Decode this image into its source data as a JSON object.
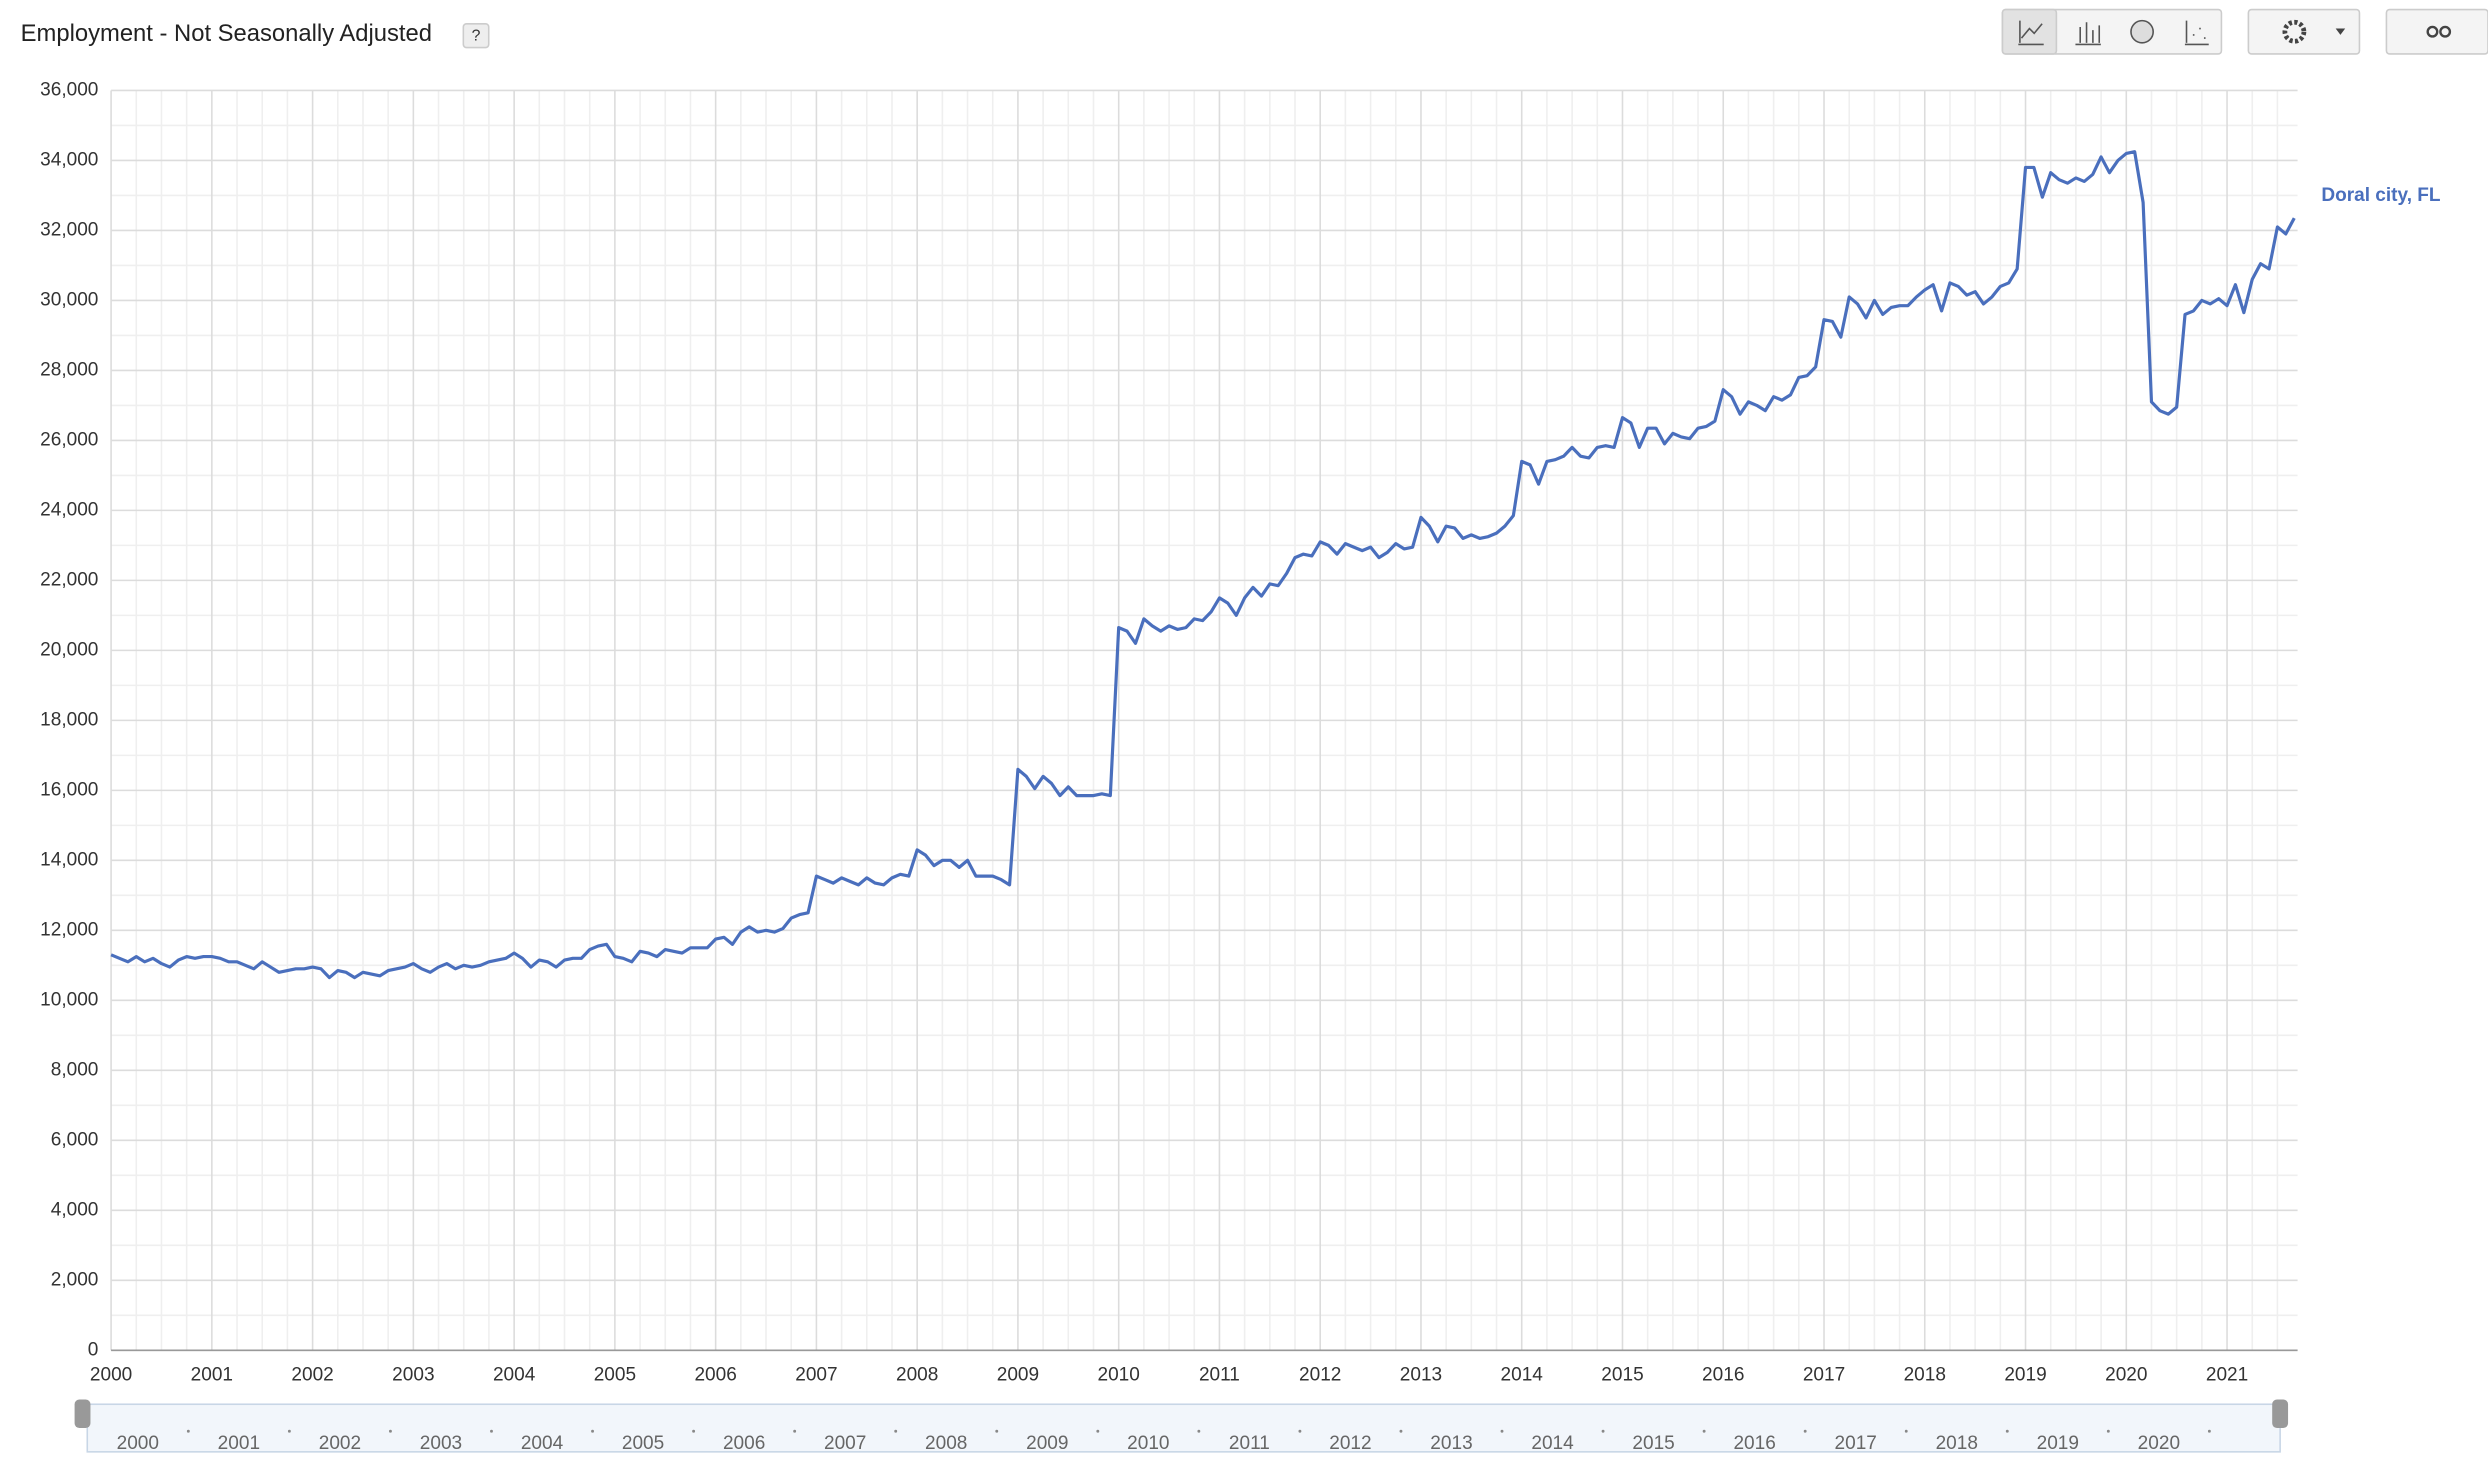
{
  "chart_data": {
    "type": "line",
    "title": "Employment - Not Seasonally Adjusted",
    "help": "?",
    "grid": true,
    "xlim": [
      2000,
      2021.7
    ],
    "xticks": [
      2000,
      2001,
      2002,
      2003,
      2004,
      2005,
      2006,
      2007,
      2008,
      2009,
      2010,
      2011,
      2012,
      2013,
      2014,
      2015,
      2016,
      2017,
      2018,
      2019,
      2020,
      2021
    ],
    "ylim": [
      0,
      36000
    ],
    "yticks": [
      0,
      {
        "value": 2000,
        "label": "2,000"
      },
      {
        "value": 4000,
        "label": "4,000"
      },
      {
        "value": 6000,
        "label": "6,000"
      },
      {
        "value": 8000,
        "label": "8,000"
      },
      {
        "value": 10000,
        "label": "10,000"
      },
      {
        "value": 12000,
        "label": "12,000"
      },
      {
        "value": 14000,
        "label": "14,000"
      },
      {
        "value": 16000,
        "label": "16,000"
      },
      {
        "value": 18000,
        "label": "18,000"
      },
      {
        "value": 20000,
        "label": "20,000"
      },
      {
        "value": 22000,
        "label": "22,000"
      },
      {
        "value": 24000,
        "label": "24,000"
      },
      {
        "value": 26000,
        "label": "26,000"
      },
      {
        "value": 28000,
        "label": "28,000"
      },
      {
        "value": 30000,
        "label": "30,000"
      },
      {
        "value": 32000,
        "label": "32,000"
      },
      {
        "value": 34000,
        "label": "34,000"
      },
      {
        "value": 36000,
        "label": "36,000"
      }
    ],
    "navigator_labels": [
      2000,
      2001,
      2002,
      2003,
      2004,
      2005,
      2006,
      2007,
      2008,
      2009,
      2010,
      2011,
      2012,
      2013,
      2014,
      2015,
      2016,
      2017,
      2018,
      2019,
      2020
    ],
    "x": [
      2000,
      2000.083,
      2000.167,
      2000.25,
      2000.333,
      2000.417,
      2000.5,
      2000.583,
      2000.667,
      2000.75,
      2000.833,
      2000.917,
      2001,
      2001.083,
      2001.167,
      2001.25,
      2001.333,
      2001.417,
      2001.5,
      2001.583,
      2001.667,
      2001.75,
      2001.833,
      2001.917,
      2002,
      2002.083,
      2002.167,
      2002.25,
      2002.333,
      2002.417,
      2002.5,
      2002.583,
      2002.667,
      2002.75,
      2002.833,
      2002.917,
      2003,
      2003.083,
      2003.167,
      2003.25,
      2003.333,
      2003.417,
      2003.5,
      2003.583,
      2003.667,
      2003.75,
      2003.833,
      2003.917,
      2004,
      2004.083,
      2004.167,
      2004.25,
      2004.333,
      2004.417,
      2004.5,
      2004.583,
      2004.667,
      2004.75,
      2004.833,
      2004.917,
      2005,
      2005.083,
      2005.167,
      2005.25,
      2005.333,
      2005.417,
      2005.5,
      2005.583,
      2005.667,
      2005.75,
      2005.833,
      2005.917,
      2006,
      2006.083,
      2006.167,
      2006.25,
      2006.333,
      2006.417,
      2006.5,
      2006.583,
      2006.667,
      2006.75,
      2006.833,
      2006.917,
      2007,
      2007.083,
      2007.167,
      2007.25,
      2007.333,
      2007.417,
      2007.5,
      2007.583,
      2007.667,
      2007.75,
      2007.833,
      2007.917,
      2008,
      2008.083,
      2008.167,
      2008.25,
      2008.333,
      2008.417,
      2008.5,
      2008.583,
      2008.667,
      2008.75,
      2008.833,
      2008.917,
      2009,
      2009.083,
      2009.167,
      2009.25,
      2009.333,
      2009.417,
      2009.5,
      2009.583,
      2009.667,
      2009.75,
      2009.833,
      2009.917,
      2010,
      2010.083,
      2010.167,
      2010.25,
      2010.333,
      2010.417,
      2010.5,
      2010.583,
      2010.667,
      2010.75,
      2010.833,
      2010.917,
      2011,
      2011.083,
      2011.167,
      2011.25,
      2011.333,
      2011.417,
      2011.5,
      2011.583,
      2011.667,
      2011.75,
      2011.833,
      2011.917,
      2012,
      2012.083,
      2012.167,
      2012.25,
      2012.333,
      2012.417,
      2012.5,
      2012.583,
      2012.667,
      2012.75,
      2012.833,
      2012.917,
      2013,
      2013.083,
      2013.167,
      2013.25,
      2013.333,
      2013.417,
      2013.5,
      2013.583,
      2013.667,
      2013.75,
      2013.833,
      2013.917,
      2014,
      2014.083,
      2014.167,
      2014.25,
      2014.333,
      2014.417,
      2014.5,
      2014.583,
      2014.667,
      2014.75,
      2014.833,
      2014.917,
      2015,
      2015.083,
      2015.167,
      2015.25,
      2015.333,
      2015.417,
      2015.5,
      2015.583,
      2015.667,
      2015.75,
      2015.833,
      2015.917,
      2016,
      2016.083,
      2016.167,
      2016.25,
      2016.333,
      2016.417,
      2016.5,
      2016.583,
      2016.667,
      2016.75,
      2016.833,
      2016.917,
      2017,
      2017.083,
      2017.167,
      2017.25,
      2017.333,
      2017.417,
      2017.5,
      2017.583,
      2017.667,
      2017.75,
      2017.833,
      2017.917,
      2018,
      2018.083,
      2018.167,
      2018.25,
      2018.333,
      2018.417,
      2018.5,
      2018.583,
      2018.667,
      2018.75,
      2018.833,
      2018.917,
      2019,
      2019.083,
      2019.167,
      2019.25,
      2019.333,
      2019.417,
      2019.5,
      2019.583,
      2019.667,
      2019.75,
      2019.833,
      2019.917,
      2020,
      2020.083,
      2020.167,
      2020.25,
      2020.333,
      2020.417,
      2020.5,
      2020.583,
      2020.667,
      2020.75,
      2020.833,
      2020.917,
      2021,
      2021.083,
      2021.167,
      2021.25,
      2021.333,
      2021.417,
      2021.5,
      2021.583,
      2021.667
    ],
    "series": [
      {
        "name": "Doral city, FL",
        "color": "#4a6fbd",
        "values": [
          11300,
          11200,
          11100,
          11250,
          11100,
          11200,
          11050,
          10950,
          11150,
          11250,
          11200,
          11250,
          11250,
          11200,
          11100,
          11100,
          11000,
          10900,
          11100,
          10950,
          10800,
          10850,
          10900,
          10900,
          10950,
          10900,
          10650,
          10850,
          10800,
          10650,
          10800,
          10750,
          10700,
          10850,
          10900,
          10950,
          11050,
          10900,
          10800,
          10950,
          11050,
          10900,
          11000,
          10950,
          11000,
          11100,
          11150,
          11200,
          11350,
          11200,
          10950,
          11150,
          11100,
          10950,
          11150,
          11200,
          11200,
          11450,
          11550,
          11600,
          11250,
          11200,
          11100,
          11400,
          11350,
          11250,
          11450,
          11400,
          11350,
          11500,
          11500,
          11500,
          11750,
          11800,
          11600,
          11950,
          12100,
          11950,
          12000,
          11950,
          12050,
          12350,
          12450,
          12500,
          13550,
          13450,
          13350,
          13500,
          13400,
          13300,
          13500,
          13350,
          13300,
          13500,
          13600,
          13550,
          14300,
          14150,
          13850,
          14000,
          14000,
          13800,
          14000,
          13550,
          13550,
          13550,
          13450,
          13300,
          16600,
          16400,
          16050,
          16400,
          16200,
          15850,
          16100,
          15850,
          15850,
          15850,
          15900,
          15850,
          20650,
          20550,
          20200,
          20900,
          20700,
          20550,
          20700,
          20600,
          20650,
          20900,
          20850,
          21100,
          21500,
          21350,
          21000,
          21500,
          21800,
          21550,
          21900,
          21850,
          22200,
          22650,
          22750,
          22700,
          23100,
          23000,
          22750,
          23050,
          22950,
          22850,
          22950,
          22650,
          22800,
          23050,
          22900,
          22950,
          23800,
          23550,
          23100,
          23550,
          23500,
          23200,
          23300,
          23200,
          23250,
          23350,
          23550,
          23850,
          25400,
          25300,
          24750,
          25400,
          25450,
          25550,
          25800,
          25550,
          25500,
          25800,
          25850,
          25800,
          26650,
          26500,
          25800,
          26350,
          26350,
          25900,
          26200,
          26100,
          26050,
          26350,
          26400,
          26550,
          27450,
          27250,
          26750,
          27100,
          27000,
          26850,
          27250,
          27150,
          27300,
          27800,
          27850,
          28100,
          29450,
          29400,
          28950,
          30100,
          29900,
          29500,
          30000,
          29600,
          29800,
          29850,
          29850,
          30100,
          30300,
          30450,
          29700,
          30500,
          30400,
          30150,
          30250,
          29900,
          30100,
          30400,
          30500,
          30900,
          33800,
          33800,
          32950,
          33650,
          33450,
          33350,
          33500,
          33400,
          33600,
          34100,
          33650,
          34000,
          34200,
          34250,
          32800,
          27100,
          26850,
          26750,
          26950,
          29600,
          29700,
          30000,
          29900,
          30050,
          29850,
          30450,
          29650,
          30600,
          31050,
          30900,
          32100,
          31900,
          32350
        ]
      }
    ]
  }
}
